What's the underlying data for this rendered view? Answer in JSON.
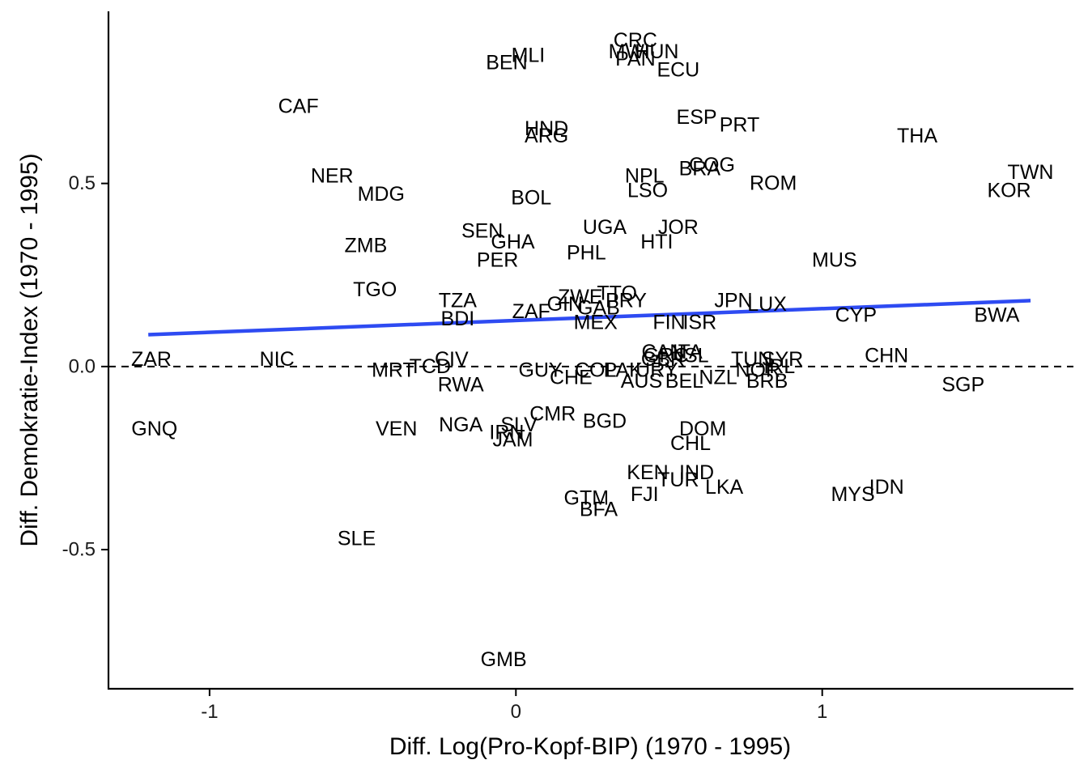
{
  "chart_data": {
    "type": "scatter",
    "title": "",
    "xlabel": "Diff. Log(Pro-Kopf-BIP) (1970 - 1995)",
    "ylabel": "Diff. Demokratie-Index (1970 - 1995)",
    "xlim": [
      -1.33,
      1.82
    ],
    "ylim": [
      -0.88,
      0.97
    ],
    "x_ticks": [
      -1,
      0,
      1
    ],
    "x_tick_labels": [
      "-1",
      "0",
      "1"
    ],
    "y_ticks": [
      -0.5,
      0.0,
      0.5
    ],
    "y_tick_labels": [
      "-0.5",
      "0.0",
      "0.5"
    ],
    "grid": false,
    "reference_line": {
      "y": 0.0,
      "style": "dashed",
      "color": "#000000"
    },
    "fit_line": {
      "x": [
        -1.2,
        1.68
      ],
      "y": [
        0.087,
        0.18
      ],
      "color": "#2E4BF2"
    },
    "points": [
      {
        "label": "CRC",
        "x": 0.39,
        "y": 0.89
      },
      {
        "label": "MWI",
        "x": 0.37,
        "y": 0.86
      },
      {
        "label": "HUN",
        "x": 0.46,
        "y": 0.86
      },
      {
        "label": "PAN",
        "x": 0.39,
        "y": 0.84
      },
      {
        "label": "MLI",
        "x": 0.04,
        "y": 0.85
      },
      {
        "label": "BEN",
        "x": -0.03,
        "y": 0.83
      },
      {
        "label": "ECU",
        "x": 0.53,
        "y": 0.81
      },
      {
        "label": "CAF",
        "x": -0.71,
        "y": 0.71
      },
      {
        "label": "ESP",
        "x": 0.59,
        "y": 0.68
      },
      {
        "label": "PRT",
        "x": 0.73,
        "y": 0.66
      },
      {
        "label": "HND",
        "x": 0.1,
        "y": 0.65
      },
      {
        "label": "ARG",
        "x": 0.1,
        "y": 0.63
      },
      {
        "label": "THA",
        "x": 1.31,
        "y": 0.63
      },
      {
        "label": "COG",
        "x": 0.64,
        "y": 0.55
      },
      {
        "label": "BRA",
        "x": 0.6,
        "y": 0.54
      },
      {
        "label": "NER",
        "x": -0.6,
        "y": 0.52
      },
      {
        "label": "NPL",
        "x": 0.42,
        "y": 0.52
      },
      {
        "label": "TWN",
        "x": 1.68,
        "y": 0.53
      },
      {
        "label": "ROM",
        "x": 0.84,
        "y": 0.5
      },
      {
        "label": "LSO",
        "x": 0.43,
        "y": 0.48
      },
      {
        "label": "KOR",
        "x": 1.61,
        "y": 0.48
      },
      {
        "label": "MDG",
        "x": -0.44,
        "y": 0.47
      },
      {
        "label": "BOL",
        "x": 0.05,
        "y": 0.46
      },
      {
        "label": "UGA",
        "x": 0.29,
        "y": 0.38
      },
      {
        "label": "JOR",
        "x": 0.53,
        "y": 0.38
      },
      {
        "label": "SEN",
        "x": -0.11,
        "y": 0.37
      },
      {
        "label": "GHA",
        "x": -0.01,
        "y": 0.34
      },
      {
        "label": "HTI",
        "x": 0.46,
        "y": 0.34
      },
      {
        "label": "ZMB",
        "x": -0.49,
        "y": 0.33
      },
      {
        "label": "PHL",
        "x": 0.23,
        "y": 0.31
      },
      {
        "label": "PER",
        "x": -0.06,
        "y": 0.29
      },
      {
        "label": "MUS",
        "x": 1.04,
        "y": 0.29
      },
      {
        "label": "TGO",
        "x": -0.46,
        "y": 0.21
      },
      {
        "label": "TTO",
        "x": 0.33,
        "y": 0.2
      },
      {
        "label": "ZWE",
        "x": 0.21,
        "y": 0.19
      },
      {
        "label": "TZA",
        "x": -0.19,
        "y": 0.18
      },
      {
        "label": "JPN",
        "x": 0.71,
        "y": 0.18
      },
      {
        "label": "LUX",
        "x": 0.82,
        "y": 0.17
      },
      {
        "label": "PRY",
        "x": 0.36,
        "y": 0.18
      },
      {
        "label": "GIN",
        "x": 0.16,
        "y": 0.17
      },
      {
        "label": "GAB",
        "x": 0.27,
        "y": 0.16
      },
      {
        "label": "ZAF",
        "x": 0.05,
        "y": 0.15
      },
      {
        "label": "CYP",
        "x": 1.11,
        "y": 0.14
      },
      {
        "label": "BWA",
        "x": 1.57,
        "y": 0.14
      },
      {
        "label": "BDI",
        "x": -0.19,
        "y": 0.13
      },
      {
        "label": "FIN",
        "x": 0.5,
        "y": 0.12
      },
      {
        "label": "MEX",
        "x": 0.26,
        "y": 0.12
      },
      {
        "label": "ISR",
        "x": 0.6,
        "y": 0.12
      },
      {
        "label": "CAN",
        "x": 0.48,
        "y": 0.04
      },
      {
        "label": "GRC",
        "x": 0.49,
        "y": 0.03
      },
      {
        "label": "GBR",
        "x": 0.48,
        "y": 0.02
      },
      {
        "label": "ITA",
        "x": 0.56,
        "y": 0.04
      },
      {
        "label": "ISL",
        "x": 0.58,
        "y": 0.03
      },
      {
        "label": "TUN",
        "x": 0.77,
        "y": 0.02
      },
      {
        "label": "SYR",
        "x": 0.87,
        "y": 0.02
      },
      {
        "label": "IRL",
        "x": 0.86,
        "y": 0.0
      },
      {
        "label": "CHN",
        "x": 1.21,
        "y": 0.03
      },
      {
        "label": "ZAR",
        "x": -1.19,
        "y": 0.02
      },
      {
        "label": "NIC",
        "x": -0.78,
        "y": 0.02
      },
      {
        "label": "CIV",
        "x": -0.21,
        "y": 0.02
      },
      {
        "label": "TCD",
        "x": -0.28,
        "y": 0.0
      },
      {
        "label": "MRT",
        "x": -0.4,
        "y": -0.01
      },
      {
        "label": "GUY",
        "x": 0.08,
        "y": -0.01
      },
      {
        "label": "COL",
        "x": 0.26,
        "y": -0.01
      },
      {
        "label": "PAK",
        "x": 0.35,
        "y": -0.01
      },
      {
        "label": "URY",
        "x": 0.46,
        "y": -0.01
      },
      {
        "label": "CHE",
        "x": 0.18,
        "y": -0.03
      },
      {
        "label": "AUS",
        "x": 0.41,
        "y": -0.04
      },
      {
        "label": "BEL",
        "x": 0.55,
        "y": -0.04
      },
      {
        "label": "NOR",
        "x": 0.79,
        "y": -0.01
      },
      {
        "label": "NZL",
        "x": 0.66,
        "y": -0.03
      },
      {
        "label": "BRB",
        "x": 0.82,
        "y": -0.04
      },
      {
        "label": "RWA",
        "x": -0.18,
        "y": -0.05
      },
      {
        "label": "SGP",
        "x": 1.46,
        "y": -0.05
      },
      {
        "label": "CMR",
        "x": 0.12,
        "y": -0.13
      },
      {
        "label": "BGD",
        "x": 0.29,
        "y": -0.15
      },
      {
        "label": "GNQ",
        "x": -1.18,
        "y": -0.17
      },
      {
        "label": "VEN",
        "x": -0.39,
        "y": -0.17
      },
      {
        "label": "NGA",
        "x": -0.18,
        "y": -0.16
      },
      {
        "label": "SLV",
        "x": 0.01,
        "y": -0.16
      },
      {
        "label": "IRN",
        "x": -0.03,
        "y": -0.18
      },
      {
        "label": "JAM",
        "x": -0.01,
        "y": -0.2
      },
      {
        "label": "DOM",
        "x": 0.61,
        "y": -0.17
      },
      {
        "label": "CHL",
        "x": 0.57,
        "y": -0.21
      },
      {
        "label": "KEN",
        "x": 0.43,
        "y": -0.29
      },
      {
        "label": "IND",
        "x": 0.59,
        "y": -0.29
      },
      {
        "label": "TUR",
        "x": 0.53,
        "y": -0.31
      },
      {
        "label": "LKA",
        "x": 0.68,
        "y": -0.33
      },
      {
        "label": "FJI",
        "x": 0.42,
        "y": -0.35
      },
      {
        "label": "GTM",
        "x": 0.23,
        "y": -0.36
      },
      {
        "label": "BFA",
        "x": 0.27,
        "y": -0.39
      },
      {
        "label": "MYS",
        "x": 1.1,
        "y": -0.35
      },
      {
        "label": "IDN",
        "x": 1.21,
        "y": -0.33
      },
      {
        "label": "SLE",
        "x": -0.52,
        "y": -0.47
      },
      {
        "label": "GMB",
        "x": -0.04,
        "y": -0.8
      }
    ]
  },
  "colors": {
    "fit_line": "#2E4BF2",
    "axes": "#000000",
    "labels": "#000000"
  }
}
